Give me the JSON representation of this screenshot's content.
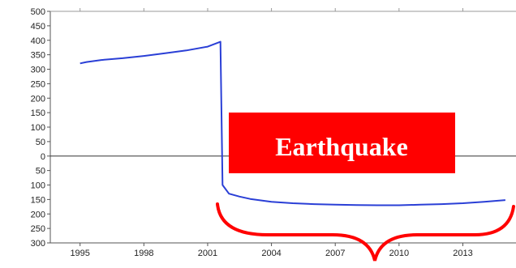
{
  "chart_data": {
    "type": "line",
    "title": "",
    "xlabel": "",
    "ylabel": "",
    "xlim": [
      1993.6,
      2015.5
    ],
    "ylim": [
      -300,
      500
    ],
    "y_ticks": [
      500,
      450,
      400,
      350,
      300,
      250,
      200,
      150,
      100,
      50,
      0,
      -50,
      -100,
      -150,
      -200,
      -250,
      -300
    ],
    "y_tick_labels": [
      "500",
      "450",
      "400",
      "350",
      "300",
      "250",
      "200",
      "150",
      "100",
      "50",
      "0",
      "50",
      "100",
      "150",
      "200",
      "250",
      "300"
    ],
    "x_ticks": [
      1995,
      1998,
      2001,
      2004,
      2007,
      2010,
      2013
    ],
    "x_tick_labels": [
      "1995",
      "1998",
      "2001",
      "2004",
      "2007",
      "2010",
      "2013"
    ],
    "zero_line": true,
    "grid": false,
    "series": [
      {
        "color": "#2a3fd6",
        "x": [
          1995.0,
          1995.3,
          1996.0,
          1997.0,
          1998.0,
          1999.0,
          2000.0,
          2001.0,
          2001.5,
          2001.6,
          2001.7,
          2002.0,
          2002.5,
          2003.0,
          2004.0,
          2005.0,
          2006.0,
          2007.0,
          2008.0,
          2009.0,
          2010.0,
          2011.0,
          2012.0,
          2013.0,
          2014.0,
          2015.0
        ],
        "y": [
          320,
          325,
          332,
          338,
          346,
          355,
          365,
          378,
          392,
          395,
          -100,
          -130,
          -140,
          -148,
          -158,
          -163,
          -166,
          -168,
          -169,
          -170,
          -170,
          -168,
          -166,
          -163,
          -158,
          -152
        ]
      }
    ]
  },
  "annotation": {
    "label": "Earthquake",
    "box_color": "#ff0000",
    "brace_color": "#ff0000"
  }
}
